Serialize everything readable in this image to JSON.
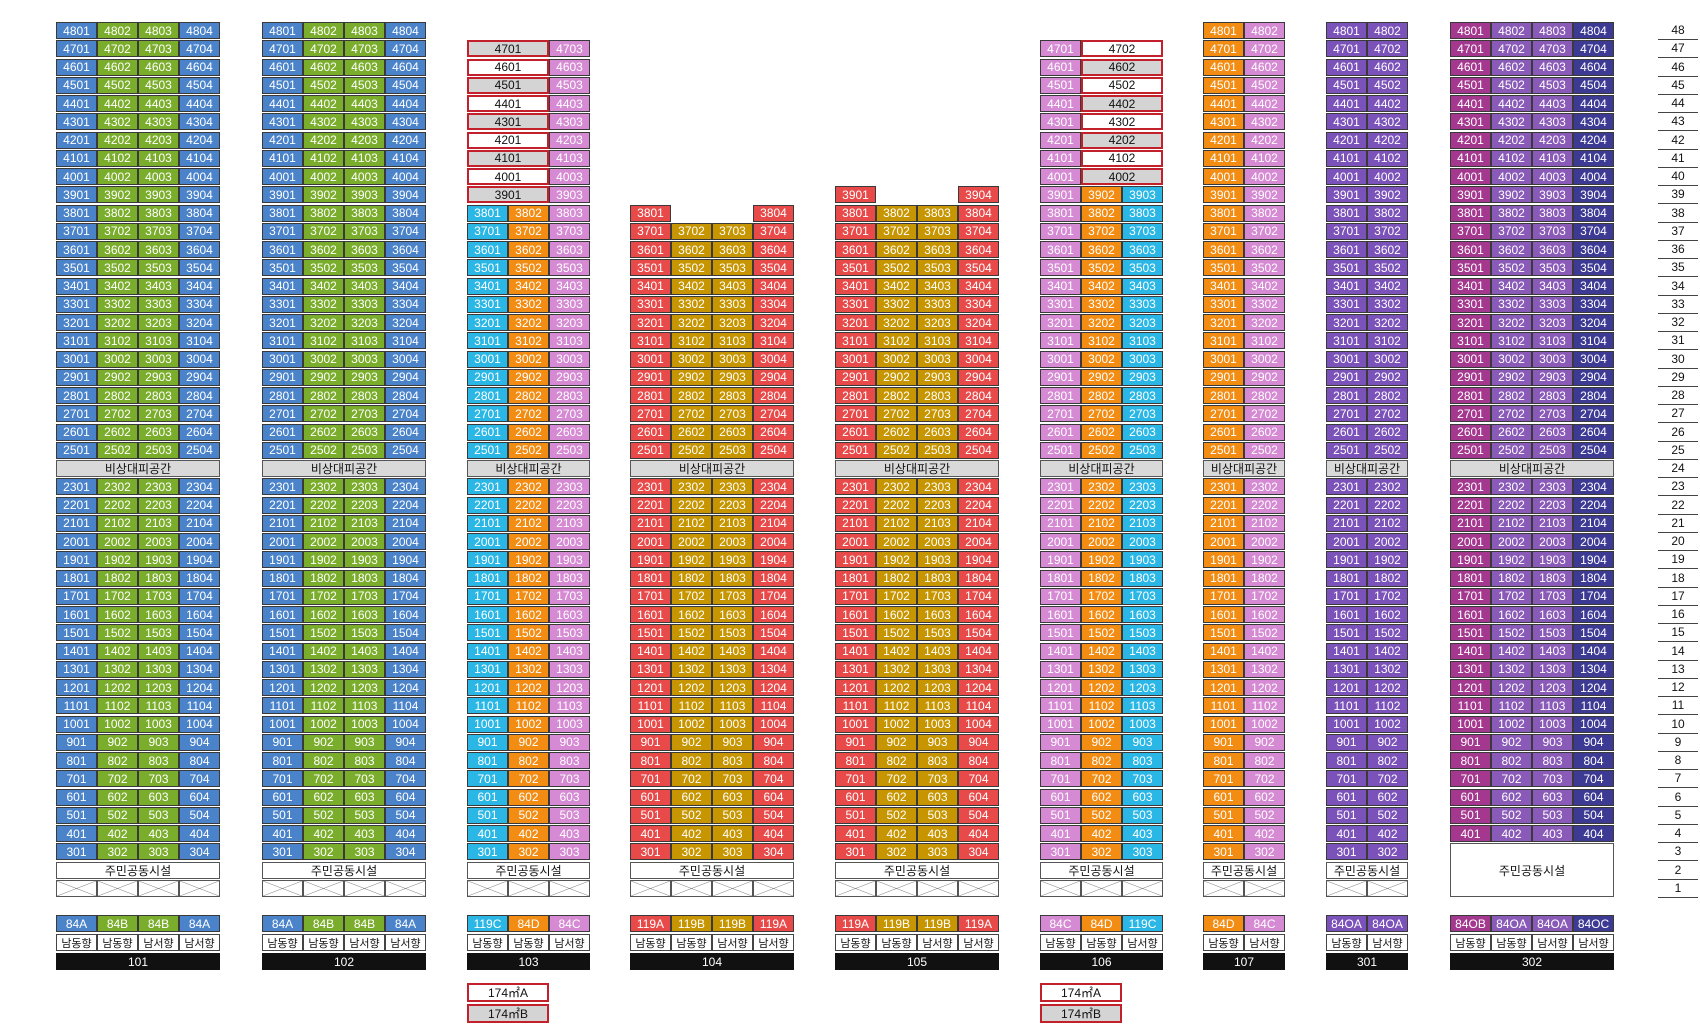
{
  "empty_floor_label": "",
  "colors": {
    "blue": "#4a83c9",
    "green": "#7bad2c",
    "cyan": "#2bb7e6",
    "orange": "#f28c13",
    "pink": "#d58ad3",
    "red": "#e84a4a",
    "gold": "#c79500",
    "purple": "#7b52b9",
    "magenta": "#a4388f",
    "navy": "#3d3a94",
    "violet": "#8a5ab8",
    "penthouse_light": "#ffffff",
    "penthouse_gray": "#d4d4d4",
    "special_border": "#c2202b"
  },
  "refuge_label": "비상대피공간",
  "facility_label": "주민공동시설",
  "floors": [
    "48",
    "47",
    "46",
    "45",
    "44",
    "43",
    "42",
    "41",
    "40",
    "39",
    "38",
    "37",
    "36",
    "35",
    "34",
    "33",
    "32",
    "31",
    "30",
    "29",
    "28",
    "27",
    "26",
    "25",
    "24",
    "23",
    "22",
    "21",
    "20",
    "19",
    "18",
    "17",
    "16",
    "15",
    "14",
    "13",
    "12",
    "11",
    "10",
    "9",
    "8",
    "7",
    "6",
    "5",
    "4",
    "3",
    "2",
    "1"
  ],
  "buildings": [
    {
      "name": "101",
      "top_floor": 48,
      "lines": [
        {
          "no": "01",
          "color": "blue",
          "type": "84A",
          "dir": "남동향"
        },
        {
          "no": "02",
          "color": "green",
          "type": "84B",
          "dir": "남동향"
        },
        {
          "no": "03",
          "color": "green",
          "type": "84B",
          "dir": "남서향"
        },
        {
          "no": "04",
          "color": "blue",
          "type": "84A",
          "dir": "남서향"
        }
      ]
    },
    {
      "name": "102",
      "top_floor": 48,
      "lines": [
        {
          "no": "01",
          "color": "blue",
          "type": "84A",
          "dir": "남동향"
        },
        {
          "no": "02",
          "color": "green",
          "type": "84B",
          "dir": "남동향"
        },
        {
          "no": "03",
          "color": "green",
          "type": "84B",
          "dir": "남서향"
        },
        {
          "no": "04",
          "color": "blue",
          "type": "84A",
          "dir": "남서향"
        }
      ]
    },
    {
      "name": "103",
      "top_floor": 47,
      "lines": [
        {
          "no": "01",
          "color": "cyan",
          "type": "119C",
          "dir": "남동향",
          "w": 2,
          "pent_from": 39
        },
        {
          "no": "02",
          "color": "orange",
          "type": "84D",
          "dir": "남동향",
          "pent_from": 39
        },
        {
          "no": "03",
          "color": "pink",
          "type": "84C",
          "dir": "남서향"
        }
      ],
      "special": [
        "174㎡A",
        "174㎡B"
      ]
    },
    {
      "name": "104",
      "top_floor": 38,
      "lines": [
        {
          "no": "01",
          "color": "red",
          "type": "119A",
          "dir": "남동향"
        },
        {
          "no": "02",
          "color": "gold",
          "type": "119B",
          "dir": "남동향",
          "top": 37
        },
        {
          "no": "03",
          "color": "gold",
          "type": "119B",
          "dir": "남서향",
          "top": 37
        },
        {
          "no": "04",
          "color": "red",
          "type": "119A",
          "dir": "남서향"
        }
      ]
    },
    {
      "name": "105",
      "top_floor": 39,
      "lines": [
        {
          "no": "01",
          "color": "red",
          "type": "119A",
          "dir": "남동향"
        },
        {
          "no": "02",
          "color": "gold",
          "type": "119B",
          "dir": "남동향",
          "top": 38
        },
        {
          "no": "03",
          "color": "gold",
          "type": "119B",
          "dir": "남서향",
          "top": 38
        },
        {
          "no": "04",
          "color": "red",
          "type": "119A",
          "dir": "남서향"
        }
      ]
    },
    {
      "name": "106",
      "top_floor": 47,
      "lines": [
        {
          "no": "01",
          "color": "pink",
          "type": "84C",
          "dir": "남동향"
        },
        {
          "no": "02",
          "color": "orange",
          "type": "84D",
          "dir": "남동향",
          "pent_from": 40
        },
        {
          "no": "03",
          "color": "cyan",
          "type": "119C",
          "dir": "남서향",
          "top": 39
        }
      ],
      "special": [
        "174㎡A",
        "174㎡B"
      ]
    },
    {
      "name": "107",
      "top_floor": 48,
      "lines": [
        {
          "no": "01",
          "color": "orange",
          "type": "84D",
          "dir": "남동향"
        },
        {
          "no": "02",
          "color": "pink",
          "type": "84C",
          "dir": "남서향"
        }
      ]
    },
    {
      "name": "301",
      "top_floor": 48,
      "lines": [
        {
          "no": "01",
          "color": "purple",
          "type": "84OA",
          "dir": "남동향"
        },
        {
          "no": "02",
          "color": "purple",
          "type": "84OA",
          "dir": "남서향"
        }
      ]
    },
    {
      "name": "302",
      "top_floor": 48,
      "bottom_floor": 4,
      "lines": [
        {
          "no": "01",
          "color": "magenta",
          "type": "84OB",
          "dir": "남동향"
        },
        {
          "no": "02",
          "color": "violet",
          "type": "84OA",
          "dir": "남동향"
        },
        {
          "no": "03",
          "color": "violet",
          "type": "84OA",
          "dir": "남서향"
        },
        {
          "no": "04",
          "color": "navy",
          "type": "84OC",
          "dir": "남서향"
        }
      ]
    }
  ]
}
